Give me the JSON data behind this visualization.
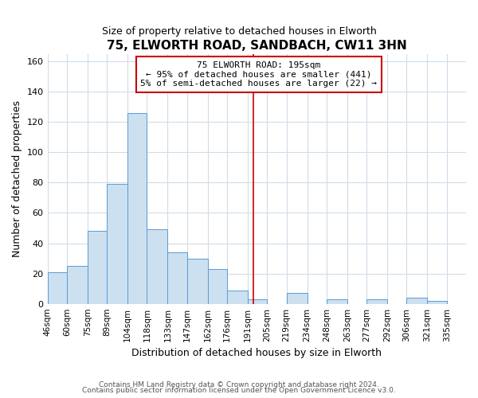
{
  "title": "75, ELWORTH ROAD, SANDBACH, CW11 3HN",
  "subtitle": "Size of property relative to detached houses in Elworth",
  "xlabel": "Distribution of detached houses by size in Elworth",
  "ylabel": "Number of detached properties",
  "bin_labels": [
    "46sqm",
    "60sqm",
    "75sqm",
    "89sqm",
    "104sqm",
    "118sqm",
    "133sqm",
    "147sqm",
    "162sqm",
    "176sqm",
    "191sqm",
    "205sqm",
    "219sqm",
    "234sqm",
    "248sqm",
    "263sqm",
    "277sqm",
    "292sqm",
    "306sqm",
    "321sqm",
    "335sqm"
  ],
  "bin_edges": [
    46,
    60,
    75,
    89,
    104,
    118,
    133,
    147,
    162,
    176,
    191,
    205,
    219,
    234,
    248,
    263,
    277,
    292,
    306,
    321,
    335,
    349
  ],
  "bar_heights": [
    21,
    25,
    48,
    79,
    126,
    49,
    34,
    30,
    23,
    9,
    3,
    0,
    7,
    0,
    3,
    0,
    3,
    0,
    4,
    2,
    0
  ],
  "bar_color": "#cce0f0",
  "bar_edge_color": "#5b9bd5",
  "reference_line_x": 195,
  "reference_line_color": "#cc0000",
  "annotation_title": "75 ELWORTH ROAD: 195sqm",
  "annotation_line1": "← 95% of detached houses are smaller (441)",
  "annotation_line2": "5% of semi-detached houses are larger (22) →",
  "annotation_box_color": "#ffffff",
  "annotation_box_edge_color": "#cc0000",
  "footer_line1": "Contains HM Land Registry data © Crown copyright and database right 2024.",
  "footer_line2": "Contains public sector information licensed under the Open Government Licence v3.0.",
  "ylim": [
    0,
    165
  ],
  "yticks": [
    0,
    20,
    40,
    60,
    80,
    100,
    120,
    140,
    160
  ],
  "background_color": "#ffffff",
  "grid_color": "#d0dce8"
}
